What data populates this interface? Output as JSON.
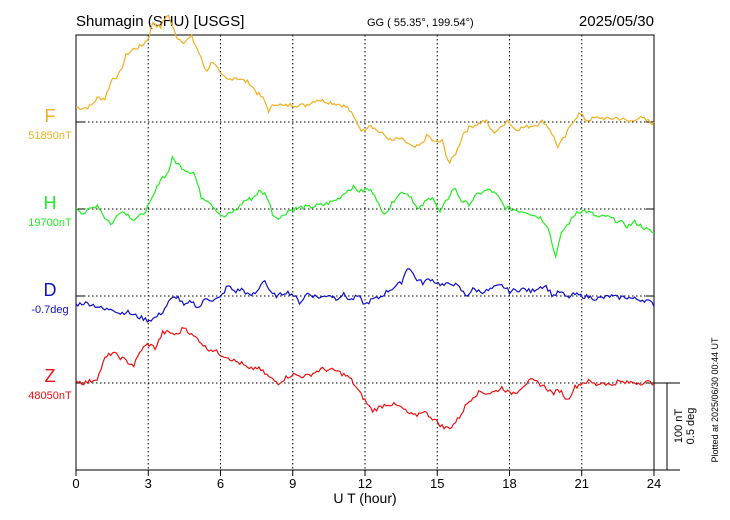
{
  "header": {
    "station": "Shumagin (SHU)  [USGS]",
    "coords": "GG ( 55.35°, 199.54°)",
    "date": "2025/05/30"
  },
  "footer": {
    "plotted": "Plotted at 2025/06/30 00:44 UT"
  },
  "scale_bar": {
    "nt_label": "100 nT",
    "deg_label": "0.5 deg"
  },
  "chart_data": {
    "type": "line",
    "xlabel": "U T (hour)",
    "x_ticks": [
      "0",
      "3",
      "6",
      "9",
      "12",
      "15",
      "18",
      "21",
      "24"
    ],
    "xlim": [
      0,
      24
    ],
    "y_unit_per_100": "100 nT",
    "series": [
      {
        "name": "F",
        "baseline_label": "51850nT",
        "color": "#f0b020",
        "t": [
          0,
          0.3,
          0.6,
          0.9,
          1.2,
          1.5,
          1.8,
          2.1,
          2.4,
          2.7,
          3.0,
          3.2,
          3.5,
          3.8,
          4.0,
          4.2,
          4.5,
          4.8,
          5.1,
          5.4,
          5.7,
          6.0,
          6.3,
          6.6,
          6.9,
          7.2,
          7.5,
          7.8,
          8.0,
          8.3,
          8.6,
          9.0,
          9.5,
          10.0,
          10.5,
          11.0,
          11.3,
          11.6,
          11.9,
          12.2,
          12.5,
          12.8,
          13.1,
          13.4,
          13.7,
          14.0,
          14.3,
          14.6,
          14.9,
          15.2,
          15.5,
          15.8,
          16.1,
          16.4,
          16.7,
          17.0,
          17.3,
          17.6,
          17.9,
          18.2,
          18.5,
          18.8,
          19.1,
          19.4,
          19.7,
          20.0,
          20.3,
          20.6,
          20.9,
          21.2,
          21.5,
          21.8,
          22.1,
          22.4,
          22.7,
          23.0,
          23.3,
          23.6,
          24.0
        ],
        "values": [
          17,
          16,
          18,
          28,
          27,
          50,
          54,
          78,
          84,
          87,
          96,
          115,
          108,
          125,
          110,
          97,
          92,
          98,
          80,
          58,
          71,
          54,
          48,
          52,
          48,
          45,
          34,
          26,
          13,
          22,
          18,
          20,
          19,
          26,
          23,
          20,
          16,
          2,
          -11,
          -2,
          -10,
          -15,
          -22,
          -19,
          -23,
          -30,
          -27,
          -15,
          -24,
          -22,
          -48,
          -34,
          -12,
          -5,
          -2,
          2,
          -12,
          -8,
          3,
          -8,
          -7,
          -5,
          -3,
          1,
          -9,
          -28,
          -18,
          0,
          10,
          2,
          4,
          5,
          3,
          5,
          3,
          0,
          5,
          3,
          -2
        ]
      },
      {
        "name": "H",
        "baseline_label": "19700nT",
        "color": "#22ee22",
        "t": [
          0,
          0.3,
          0.6,
          0.9,
          1.2,
          1.5,
          1.8,
          2.1,
          2.4,
          2.7,
          3.0,
          3.3,
          3.5,
          3.8,
          4.0,
          4.3,
          4.6,
          4.9,
          5.2,
          5.5,
          5.8,
          6.1,
          6.4,
          6.7,
          7.0,
          7.3,
          7.6,
          7.9,
          8.2,
          8.5,
          8.8,
          9.1,
          9.4,
          9.7,
          10.0,
          10.3,
          10.6,
          10.9,
          11.2,
          11.5,
          11.8,
          12.1,
          12.4,
          12.7,
          13.0,
          13.3,
          13.6,
          13.9,
          14.2,
          14.5,
          14.8,
          15.1,
          15.4,
          15.7,
          16.0,
          16.3,
          16.6,
          16.9,
          17.2,
          17.5,
          17.8,
          18.1,
          18.4,
          18.7,
          19.0,
          19.3,
          19.6,
          19.9,
          20.2,
          20.5,
          20.8,
          21.1,
          21.4,
          21.7,
          22.0,
          22.3,
          22.6,
          22.9,
          23.2,
          23.5,
          23.8,
          24.0
        ],
        "values": [
          2,
          -5,
          0,
          5,
          -10,
          -18,
          -2,
          -5,
          -12,
          -8,
          2,
          20,
          35,
          40,
          58,
          50,
          44,
          42,
          14,
          10,
          0,
          -10,
          -5,
          0,
          10,
          12,
          20,
          17,
          -8,
          -10,
          -2,
          0,
          2,
          2,
          4,
          5,
          8,
          12,
          20,
          25,
          20,
          23,
          18,
          -5,
          0,
          15,
          20,
          15,
          -2,
          8,
          15,
          -5,
          10,
          25,
          10,
          5,
          15,
          20,
          22,
          15,
          2,
          0,
          -2,
          -3,
          -7,
          -10,
          -20,
          -55,
          -25,
          -15,
          -3,
          -2,
          -5,
          -10,
          -8,
          -12,
          -15,
          -20,
          -15,
          -20,
          -25,
          -28
        ]
      },
      {
        "name": "D",
        "baseline_label": "-0.7deg",
        "color": "#1111cc",
        "t": [
          0,
          0.3,
          0.6,
          0.9,
          1.2,
          1.5,
          1.8,
          2.1,
          2.4,
          2.7,
          3.0,
          3.3,
          3.6,
          3.9,
          4.2,
          4.5,
          4.8,
          5.1,
          5.4,
          5.7,
          6.0,
          6.3,
          6.6,
          6.9,
          7.2,
          7.5,
          7.8,
          8.1,
          8.4,
          8.7,
          9.0,
          9.3,
          9.6,
          9.9,
          10.2,
          10.5,
          10.8,
          11.1,
          11.4,
          11.7,
          12.0,
          12.3,
          12.6,
          12.9,
          13.2,
          13.5,
          13.8,
          14.1,
          14.4,
          14.7,
          15.0,
          15.3,
          15.6,
          15.9,
          16.2,
          16.5,
          16.8,
          17.1,
          17.4,
          17.7,
          18.0,
          18.3,
          18.6,
          18.9,
          19.2,
          19.5,
          19.8,
          20.1,
          20.4,
          20.7,
          21.0,
          21.3,
          21.6,
          21.9,
          22.2,
          22.5,
          22.8,
          23.1,
          23.4,
          23.7,
          24.0
        ],
        "values": [
          -10,
          -8,
          -9,
          -12,
          -16,
          -14,
          -20,
          -18,
          -22,
          -25,
          -28,
          -25,
          -18,
          -5,
          0,
          -12,
          -6,
          -14,
          -2,
          -5,
          -2,
          12,
          5,
          8,
          0,
          4,
          20,
          2,
          0,
          5,
          2,
          -8,
          3,
          0,
          -2,
          2,
          -3,
          2,
          -5,
          0,
          -10,
          -4,
          -2,
          5,
          10,
          15,
          35,
          20,
          15,
          20,
          15,
          12,
          15,
          10,
          0,
          8,
          5,
          6,
          10,
          12,
          5,
          7,
          8,
          5,
          10,
          12,
          0,
          5,
          -2,
          2,
          0,
          -1,
          -3,
          -2,
          0,
          -2,
          -1,
          -3,
          -4,
          -5,
          -10
        ]
      },
      {
        "name": "Z",
        "baseline_label": "48050nT",
        "color": "#ee1111",
        "t": [
          0,
          0.3,
          0.6,
          0.9,
          1.2,
          1.5,
          1.8,
          2.1,
          2.4,
          2.7,
          3.0,
          3.3,
          3.6,
          3.9,
          4.2,
          4.5,
          4.8,
          5.1,
          5.4,
          5.7,
          6.0,
          6.3,
          6.6,
          6.9,
          7.2,
          7.5,
          7.8,
          8.1,
          8.4,
          8.7,
          9.0,
          9.3,
          9.6,
          9.9,
          10.2,
          10.5,
          10.8,
          11.1,
          11.4,
          11.7,
          12.0,
          12.3,
          12.6,
          12.9,
          13.2,
          13.5,
          13.8,
          14.1,
          14.4,
          14.7,
          15.0,
          15.3,
          15.6,
          15.9,
          16.2,
          16.5,
          16.8,
          17.1,
          17.4,
          17.7,
          18.0,
          18.3,
          18.6,
          18.9,
          19.2,
          19.5,
          19.8,
          20.1,
          20.4,
          20.7,
          21.0,
          21.3,
          21.6,
          21.9,
          22.2,
          22.5,
          22.8,
          23.1,
          23.4,
          23.7,
          24.0
        ],
        "values": [
          3,
          0,
          2,
          6,
          28,
          35,
          30,
          25,
          20,
          38,
          45,
          40,
          58,
          58,
          55,
          65,
          55,
          50,
          40,
          38,
          33,
          30,
          25,
          22,
          15,
          18,
          12,
          5,
          0,
          6,
          10,
          8,
          8,
          12,
          16,
          15,
          14,
          10,
          5,
          -8,
          -20,
          -32,
          -28,
          -24,
          -25,
          -28,
          -35,
          -38,
          -32,
          -38,
          -45,
          -52,
          -50,
          -40,
          -25,
          -15,
          -10,
          -12,
          -10,
          -5,
          -12,
          -10,
          -2,
          3,
          0,
          -5,
          -12,
          -8,
          -20,
          -5,
          0,
          2,
          -2,
          1,
          -3,
          2,
          0,
          1,
          0,
          1,
          0
        ]
      }
    ]
  }
}
